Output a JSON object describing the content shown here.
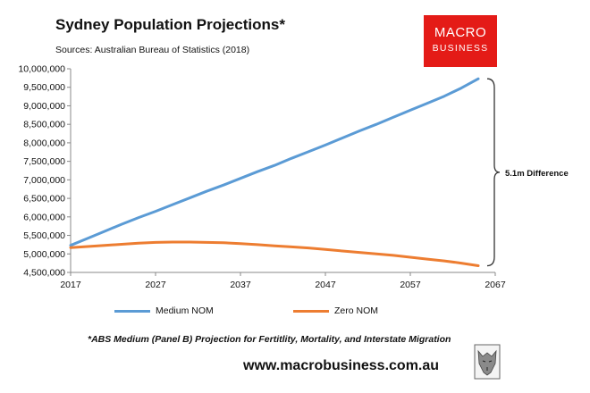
{
  "header": {
    "title": "Sydney Population Projections*",
    "source": "Sources: Australian Bureau of Statistics (2018)"
  },
  "logo": {
    "line1": "MACRO",
    "line2": "BUSINESS",
    "background": "#e41b17"
  },
  "footer": {
    "note": "*ABS Medium (Panel B) Projection for Fertitlity, Mortality, and Interstate Migration",
    "website": "www.macrobusiness.com.au"
  },
  "colors": {
    "medium": "#5b9bd5",
    "zero": "#ed7d31",
    "plot_bg": "#ffffff",
    "axis": "#888888"
  },
  "chart_data": {
    "type": "line",
    "title": "Sydney Population Projections*",
    "xlabel": "",
    "ylabel": "",
    "xlim": [
      2017,
      2067
    ],
    "ylim": [
      4500000,
      10000000
    ],
    "x_ticks": [
      2017,
      2027,
      2037,
      2047,
      2057,
      2067
    ],
    "y_ticks": [
      4500000,
      5000000,
      5500000,
      6000000,
      6500000,
      7000000,
      7500000,
      8000000,
      8500000,
      9000000,
      9500000,
      10000000
    ],
    "y_tick_labels": [
      "4,500,000",
      "5,000,000",
      "5,500,000",
      "6,000,000",
      "6,500,000",
      "7,000,000",
      "7,500,000",
      "8,000,000",
      "8,500,000",
      "9,000,000",
      "9,500,000",
      "10,000,000"
    ],
    "x_tick_labels": [
      "2017",
      "2027",
      "2037",
      "2047",
      "2057",
      "2067"
    ],
    "grid": false,
    "legend_position": "bottom",
    "annotation": "5.1m Difference",
    "series": [
      {
        "name": "Medium NOM",
        "x": [
          2017,
          2019,
          2021,
          2023,
          2025,
          2027,
          2029,
          2031,
          2033,
          2035,
          2037,
          2039,
          2041,
          2043,
          2045,
          2047,
          2049,
          2051,
          2053,
          2055,
          2057,
          2059,
          2061,
          2063,
          2065
        ],
        "values": [
          5230000,
          5420000,
          5610000,
          5800000,
          5980000,
          6150000,
          6330000,
          6510000,
          6690000,
          6860000,
          7040000,
          7220000,
          7390000,
          7580000,
          7760000,
          7940000,
          8130000,
          8320000,
          8500000,
          8690000,
          8880000,
          9070000,
          9260000,
          9480000,
          9730000
        ]
      },
      {
        "name": "Zero NOM",
        "x": [
          2017,
          2019,
          2021,
          2023,
          2025,
          2027,
          2029,
          2031,
          2033,
          2035,
          2037,
          2039,
          2041,
          2043,
          2045,
          2047,
          2049,
          2051,
          2053,
          2055,
          2057,
          2059,
          2061,
          2063,
          2065
        ],
        "values": [
          5170000,
          5200000,
          5230000,
          5260000,
          5290000,
          5310000,
          5320000,
          5320000,
          5310000,
          5300000,
          5280000,
          5250000,
          5220000,
          5190000,
          5160000,
          5120000,
          5080000,
          5040000,
          5000000,
          4960000,
          4910000,
          4860000,
          4810000,
          4750000,
          4680000
        ]
      }
    ]
  }
}
